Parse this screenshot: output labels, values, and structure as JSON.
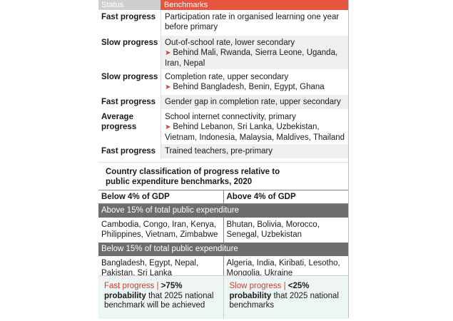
{
  "header": {
    "status": "Status",
    "benchmarks": "Benchmarks"
  },
  "rows": [
    {
      "status": "Fast progress",
      "text": "Participation rate in organised learning one year before primary",
      "behind": ""
    },
    {
      "status": "Slow progress",
      "text": "Out-of-school rate, lower secondary",
      "behind": "Behind Mali, Rwanda, Sierra Leone, Uganda, Iran, Nepal"
    },
    {
      "status": "Slow progress",
      "text": "Completion rate, upper secondary",
      "behind": "Behind Bangladesh, Benin, Egypt, Ghana"
    },
    {
      "status": "Fast progress",
      "text": "Gender gap in completion rate, upper secondary",
      "behind": ""
    },
    {
      "status": "Average progress",
      "text": "School internet connectivity, primary",
      "behind": "Behind Lebanon, Sri Lanka, Uzbekistan, Vietnam, Indonesia, Malaysia, Maldives, Thailand"
    },
    {
      "status": "Fast progress",
      "text": "Trained teachers, pre-primary",
      "behind": ""
    }
  ],
  "classification": {
    "title": "Country classification of progress relative to public expenditure benchmarks, 2020",
    "col_left": "Below 4% of GDP",
    "col_right": "Above 4% of GDP",
    "band_above": "Above 15% of total public expenditure",
    "above_left": "Cambodia, Congo, Iran, Kenya, Philippines, Vietnam, Zimbabwe",
    "above_right": "Bhutan, Bolivia, Morocco, Senegal, Uzbekistan",
    "band_below": "Below 15% of total public expenditure",
    "below_left": "Bangladesh, Egypt, Nepal, Pakistan, Sri Lanka",
    "below_right": "Algeria, India, Kiribati, Lesotho, Mongolia, Ukraine"
  },
  "legend": {
    "fast_label": "Fast progress",
    "fast_threshold": ">75%",
    "fast_bold": "probability",
    "fast_rest": " that 2025 national benchmark will be achieved",
    "slow_label": "Slow progress",
    "slow_threshold": "<25%",
    "slow_bold": "probability",
    "slow_rest": " that 2025 national benchmarks",
    "separator": " | "
  },
  "colors": {
    "accent": "#e8553f",
    "arrow": "#d23a2a",
    "band": "#6d6d6d",
    "legend_bg": "#eef5f5"
  },
  "icons": {
    "behind_marker": "arrow-right-icon"
  }
}
